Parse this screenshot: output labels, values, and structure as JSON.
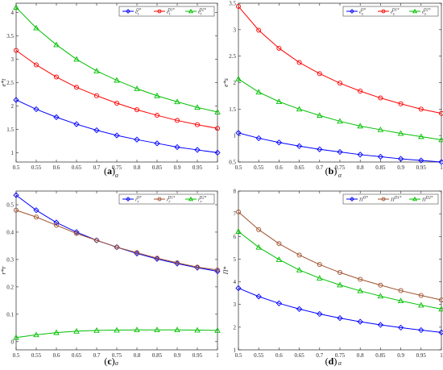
{
  "chart_data": [
    {
      "id": "a",
      "type": "line",
      "caption": "(a)",
      "xlabel": "α",
      "ylabel": "e*t",
      "xlim": [
        0.5,
        1
      ],
      "ylim": [
        0.8,
        4.2
      ],
      "x": [
        0.5,
        0.55,
        0.6,
        0.65,
        0.7,
        0.75,
        0.8,
        0.85,
        0.9,
        0.95,
        1
      ],
      "xticks": [
        "0.5",
        "0.55",
        "0.6",
        "0.65",
        "0.7",
        "0.75",
        "0.8",
        "0.85",
        "0.9",
        "0.95",
        "1"
      ],
      "yticks": [
        1,
        1.5,
        2,
        2.5,
        3,
        3.5,
        4
      ],
      "ytick_labels": [
        "1",
        "1.5",
        "2",
        "2.5",
        "3",
        "3.5",
        "4"
      ],
      "legend_loc": "top-right",
      "series": [
        {
          "name": "e_t^{O*}",
          "color": "#0000ff",
          "marker": "diamond",
          "values": [
            2.13,
            1.93,
            1.76,
            1.61,
            1.48,
            1.37,
            1.28,
            1.2,
            1.12,
            1.06,
            1.0
          ]
        },
        {
          "name": "e_t^{D1*}",
          "color": "#ff0000",
          "marker": "circle",
          "values": [
            3.19,
            2.88,
            2.62,
            2.4,
            2.22,
            2.06,
            1.92,
            1.8,
            1.69,
            1.6,
            1.52
          ]
        },
        {
          "name": "e_t^{D2*}",
          "color": "#00c000",
          "marker": "triangle",
          "values": [
            4.11,
            3.67,
            3.31,
            3.0,
            2.75,
            2.55,
            2.37,
            2.22,
            2.09,
            1.97,
            1.87
          ]
        }
      ]
    },
    {
      "id": "b",
      "type": "line",
      "caption": "(b)",
      "xlabel": "α",
      "ylabel": "e*s",
      "xlim": [
        0.5,
        1
      ],
      "ylim": [
        0.5,
        3.5
      ],
      "x": [
        0.5,
        0.55,
        0.6,
        0.65,
        0.7,
        0.75,
        0.8,
        0.85,
        0.9,
        0.95,
        1
      ],
      "xticks": [
        "0.5",
        "0.55",
        "0.6",
        "0.65",
        "0.7",
        "0.75",
        "0.8",
        "0.85",
        "0.9",
        "0.95",
        "1"
      ],
      "yticks": [
        0.5,
        1,
        1.5,
        2,
        2.5,
        3,
        3.5
      ],
      "ytick_labels": [
        "0.5",
        "1",
        "1.5",
        "2",
        "2.5",
        "3",
        "3.5"
      ],
      "legend_loc": "top-right",
      "series": [
        {
          "name": "e_s^{O*}",
          "color": "#0000ff",
          "marker": "diamond",
          "values": [
            1.05,
            0.95,
            0.87,
            0.8,
            0.74,
            0.69,
            0.64,
            0.6,
            0.56,
            0.53,
            0.5
          ]
        },
        {
          "name": "e_s^{D1*}",
          "color": "#ff0000",
          "marker": "circle",
          "values": [
            3.44,
            2.99,
            2.65,
            2.38,
            2.17,
            1.99,
            1.84,
            1.71,
            1.6,
            1.5,
            1.42
          ]
        },
        {
          "name": "e_s^{D2*}",
          "color": "#00c000",
          "marker": "triangle",
          "values": [
            2.07,
            1.82,
            1.64,
            1.5,
            1.38,
            1.27,
            1.18,
            1.11,
            1.04,
            0.98,
            0.92
          ]
        }
      ]
    },
    {
      "id": "c",
      "type": "line",
      "caption": "(c)",
      "xlabel": "α",
      "ylabel": "r*r",
      "xlim": [
        0.5,
        1
      ],
      "ylim": [
        -0.03,
        0.55
      ],
      "x": [
        0.5,
        0.55,
        0.6,
        0.65,
        0.7,
        0.75,
        0.8,
        0.85,
        0.9,
        0.95,
        1
      ],
      "xticks": [
        "0.5",
        "0.55",
        "0.6",
        "0.65",
        "0.7",
        "0.75",
        "0.8",
        "0.85",
        "0.9",
        "0.95",
        "1"
      ],
      "yticks": [
        0,
        0.1,
        0.2,
        0.3,
        0.4,
        0.5
      ],
      "ytick_labels": [
        "0",
        "0.1",
        "0.2",
        "0.3",
        "0.4",
        "0.5"
      ],
      "legend_loc": "top-right",
      "series": [
        {
          "name": "r_r^{O*}",
          "color": "#0000ff",
          "marker": "diamond",
          "values": [
            0.535,
            0.48,
            0.435,
            0.4,
            0.37,
            0.345,
            0.322,
            0.302,
            0.285,
            0.27,
            0.257
          ]
        },
        {
          "name": "r_r^{D1*}",
          "color": "#a0522d",
          "marker": "circle",
          "values": [
            0.48,
            0.455,
            0.425,
            0.395,
            0.37,
            0.345,
            0.325,
            0.305,
            0.288,
            0.272,
            0.262
          ]
        },
        {
          "name": "r_r^{D2*}",
          "color": "#00c000",
          "marker": "triangle",
          "values": [
            0.015,
            0.025,
            0.033,
            0.038,
            0.041,
            0.042,
            0.043,
            0.043,
            0.043,
            0.042,
            0.041
          ]
        }
      ]
    },
    {
      "id": "d",
      "type": "line",
      "caption": "(d)",
      "xlabel": "α",
      "ylabel": "Π*",
      "xlim": [
        0.5,
        1
      ],
      "ylim": [
        1,
        8
      ],
      "x": [
        0.5,
        0.55,
        0.6,
        0.65,
        0.7,
        0.75,
        0.8,
        0.85,
        0.9,
        0.95,
        1
      ],
      "xticks": [
        "0.5",
        "0.55",
        "0.6",
        "0.65",
        "0.7",
        "0.75",
        "0.8",
        "0.85",
        "0.9",
        "0.95",
        "1"
      ],
      "yticks": [
        1,
        2,
        3,
        4,
        5,
        6,
        7,
        8
      ],
      "ytick_labels": [
        "1",
        "2",
        "3",
        "4",
        "5",
        "6",
        "7",
        "8"
      ],
      "legend_loc": "top-right",
      "series": [
        {
          "name": "Π^{O*}",
          "color": "#0000ff",
          "marker": "diamond",
          "values": [
            3.72,
            3.35,
            3.05,
            2.8,
            2.58,
            2.4,
            2.24,
            2.1,
            1.98,
            1.87,
            1.77
          ]
        },
        {
          "name": "Π^{D1*}",
          "color": "#a0522d",
          "marker": "circle",
          "values": [
            7.08,
            6.3,
            5.68,
            5.18,
            4.76,
            4.41,
            4.11,
            3.85,
            3.61,
            3.4,
            3.2
          ]
        },
        {
          "name": "Π^{D2*}",
          "color": "#00c000",
          "marker": "triangle",
          "values": [
            6.22,
            5.52,
            4.98,
            4.52,
            4.16,
            3.86,
            3.6,
            3.37,
            3.16,
            2.97,
            2.8
          ]
        }
      ]
    }
  ]
}
